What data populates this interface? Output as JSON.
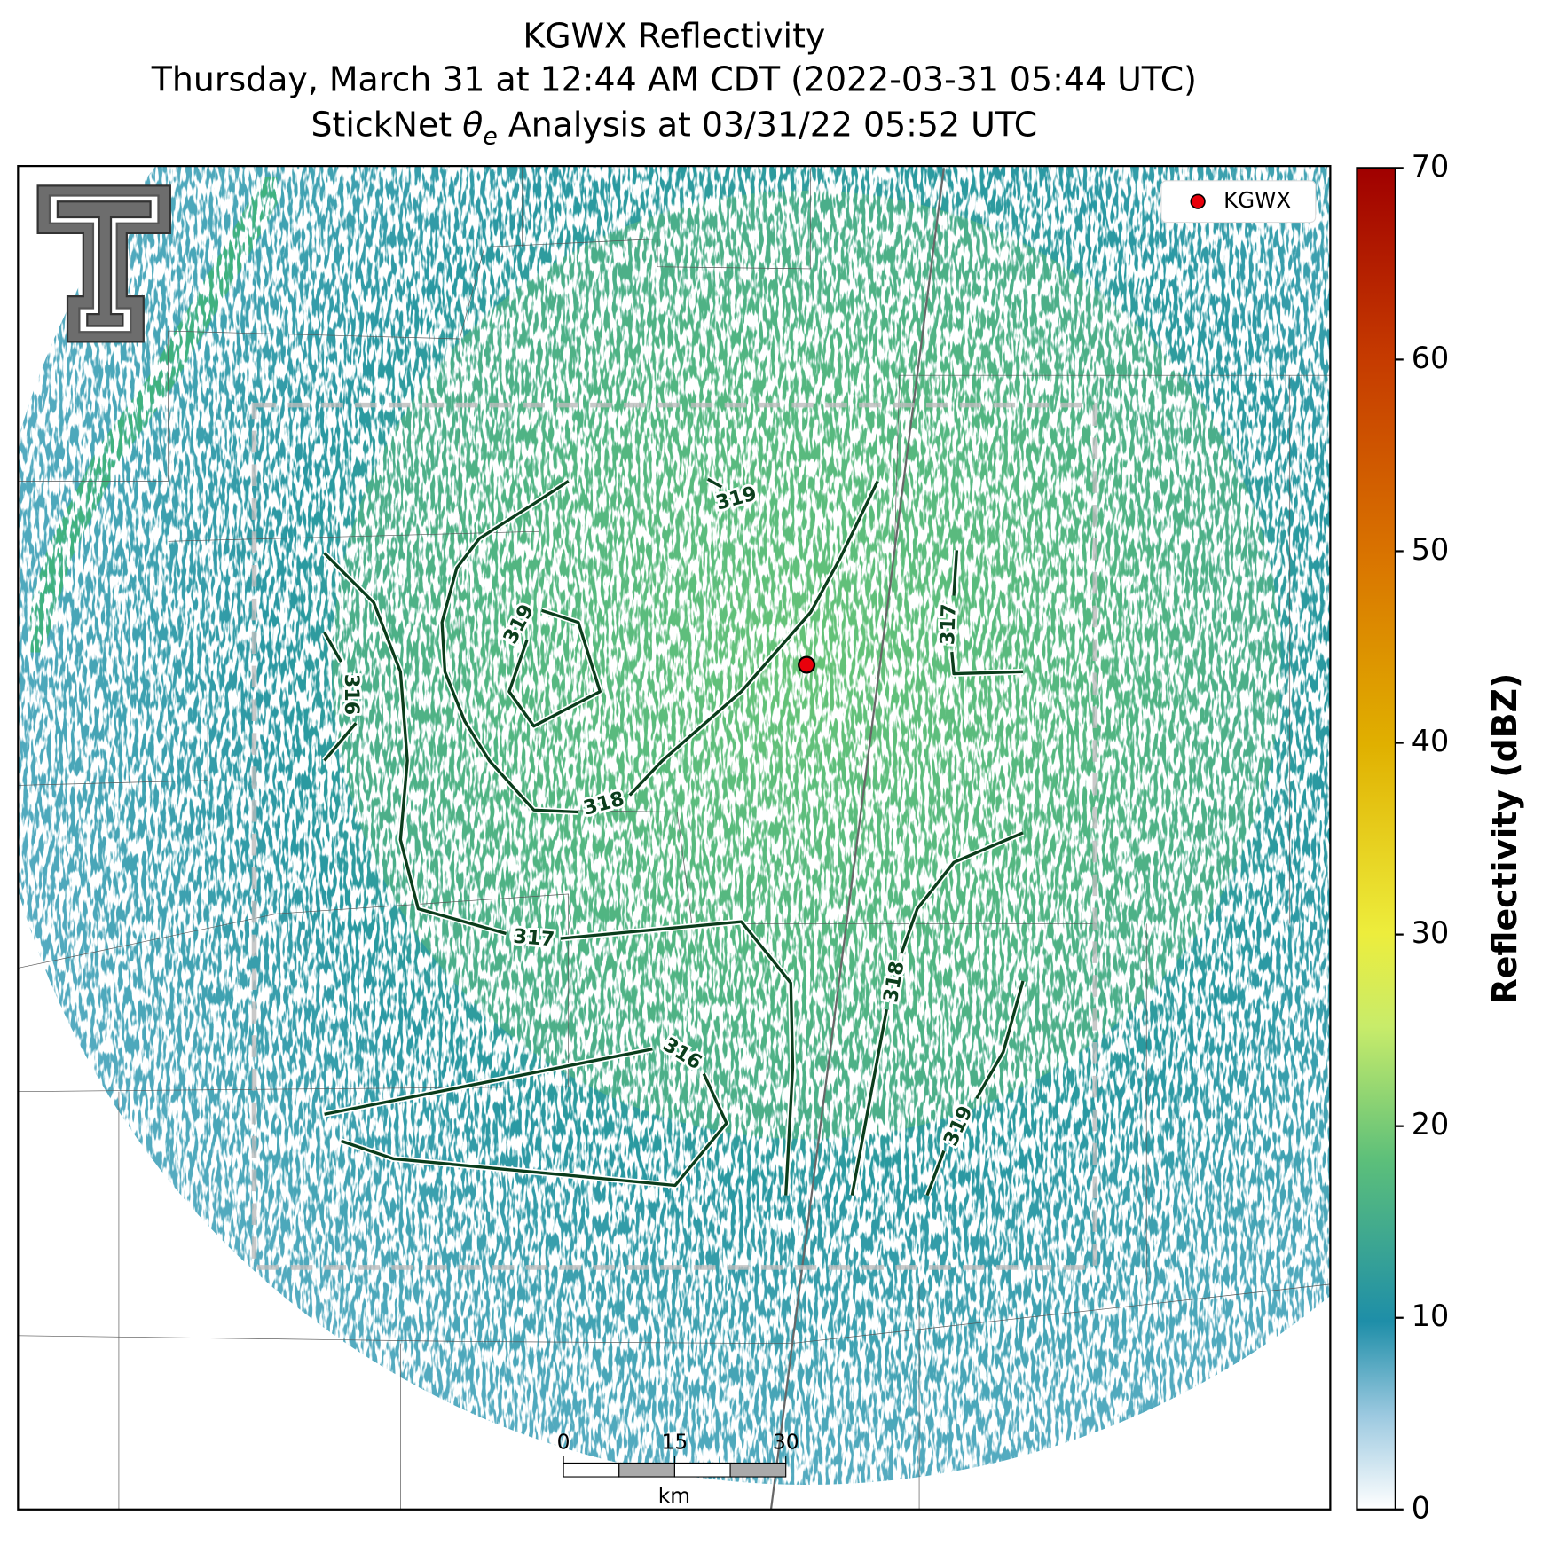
{
  "title_lines": [
    "KGWX Reflectivity",
    "Thursday, March 31 at 12:44 AM CDT (2022-03-31 05:44 UTC)"
  ],
  "subtitle_parts": [
    "StickNet",
    "θ",
    "e",
    "Analysis at 03/31/22 05:52 UTC"
  ],
  "legend": {
    "label": "KGWX",
    "color": "#e8000b"
  },
  "colorbar": {
    "label": "Reflectivity (dBZ)",
    "lim": [
      0,
      70
    ],
    "ticks": [
      0,
      10,
      20,
      30,
      40,
      50,
      60,
      70
    ]
  },
  "scale_bar": {
    "ticks": [
      0,
      15,
      30
    ],
    "unit": "km"
  },
  "contour_labels": [
    319,
    319,
    316,
    318,
    317,
    317,
    318,
    316,
    319
  ]
}
